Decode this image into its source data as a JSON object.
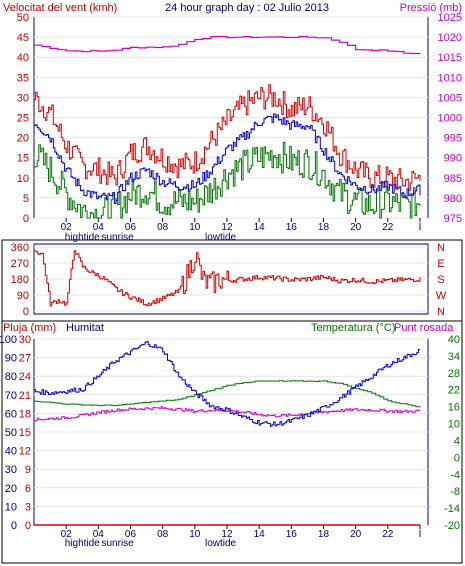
{
  "header": {
    "left_label": "Velocitat del vent (kmh)",
    "center_label": "24 hour graph day : 02 Julio 2013",
    "right_label": "Pressió (mb)"
  },
  "panel_labels": {
    "rain": "Pluja (mm)",
    "humidity": "Humitat",
    "temperature": "Temperatura (°C)",
    "dewpoint": "Punt rosada"
  },
  "x_axis": {
    "ticks": [
      "02",
      "04",
      "06",
      "08",
      "10",
      "12",
      "14",
      "16",
      "18",
      "20",
      "22",
      "I"
    ],
    "tick_hours": [
      2,
      4,
      6,
      8,
      10,
      12,
      14,
      16,
      18,
      20,
      22,
      24
    ],
    "events": [
      {
        "label": "hightide",
        "hour": 3.0
      },
      {
        "label": "sunrise",
        "hour": 5.2
      },
      {
        "label": "lowtide",
        "hour": 11.6
      }
    ],
    "range": [
      0,
      24.5
    ]
  },
  "colors": {
    "axis": "#000080",
    "wind_speed": "#dd0000",
    "wind_avg": "#0000cc",
    "wind_low": "#007700",
    "pressure": "#cc00cc",
    "direction": "#cc0000",
    "humidity": "#0000cc",
    "temperature": "#007700",
    "dewpoint": "#cc00cc",
    "rain": "#dd0000",
    "magenta_label": "#cc00cc",
    "green_label": "#007700",
    "red_label": "#cc0000"
  },
  "chart_data": [
    {
      "type": "line",
      "title": "24 hour graph day : 02 Julio 2013",
      "ylabel": "Velocitat del vent (kmh)",
      "y2label": "Pressió (mb)",
      "ylim": [
        0,
        50
      ],
      "y2lim": [
        975,
        1025
      ],
      "yticks": [
        "0",
        "5",
        "10",
        "15",
        "20",
        "25",
        "30",
        "35",
        "40",
        "45",
        "50"
      ],
      "y2ticks": [
        "975",
        "980",
        "985",
        "990",
        "995",
        "1000",
        "1005",
        "1010",
        "1015",
        "1020",
        "1025"
      ],
      "x_hours": [
        0,
        1,
        2,
        3,
        4,
        5,
        6,
        7,
        8,
        9,
        10,
        11,
        12,
        13,
        14,
        15,
        16,
        17,
        18,
        19,
        20,
        21,
        22,
        23,
        24
      ],
      "series": [
        {
          "name": "gust",
          "axis": "left",
          "values": [
            30,
            26,
            18,
            13,
            12,
            10,
            16,
            18,
            15,
            13,
            14,
            19,
            24,
            28,
            30,
            30,
            27,
            28,
            24,
            16,
            12,
            10,
            10,
            9,
            10
          ]
        },
        {
          "name": "average",
          "axis": "left",
          "values": [
            24,
            20,
            12,
            7,
            5,
            5,
            10,
            12,
            9,
            8,
            8,
            12,
            17,
            20,
            24,
            25,
            23,
            23,
            17,
            11,
            8,
            7,
            8,
            6,
            7
          ]
        },
        {
          "name": "low",
          "axis": "left",
          "values": [
            16,
            12,
            6,
            2,
            1,
            2,
            6,
            7,
            4,
            4,
            4,
            7,
            11,
            13,
            15,
            16,
            14,
            14,
            11,
            6,
            4,
            3,
            4,
            3,
            4
          ]
        },
        {
          "name": "pressure",
          "axis": "right",
          "values": [
            1018.0,
            1017.3,
            1016.6,
            1016.5,
            1016.5,
            1016.8,
            1017.4,
            1017.5,
            1017.5,
            1018.2,
            1019.5,
            1020.0,
            1020.0,
            1020.0,
            1020.0,
            1020.0,
            1020.0,
            1020.0,
            1019.8,
            1018.8,
            1016.9,
            1016.8,
            1016.6,
            1016.0,
            1016.0
          ]
        }
      ]
    },
    {
      "type": "line",
      "ylabel": "Direction",
      "ylim": [
        0,
        360
      ],
      "yticks": [
        "0",
        "90",
        "180",
        "270",
        "360"
      ],
      "y2ticks": [
        "N",
        "W",
        "S",
        "E",
        "N"
      ],
      "x_hours": [
        0,
        0.5,
        1,
        1.5,
        2,
        2.5,
        3,
        3.5,
        4,
        4.5,
        5,
        5.5,
        6,
        6.5,
        7,
        7.5,
        8,
        8.5,
        9,
        9.5,
        10,
        10.5,
        11,
        11.5,
        12,
        13,
        14,
        15,
        16,
        17,
        18,
        19,
        20,
        21,
        22,
        23,
        24
      ],
      "series": [
        {
          "name": "direction",
          "values": [
            340,
            320,
            40,
            60,
            40,
            350,
            250,
            220,
            200,
            170,
            130,
            100,
            80,
            60,
            40,
            55,
            70,
            90,
            110,
            200,
            320,
            170,
            150,
            180,
            170,
            180,
            190,
            185,
            175,
            180,
            190,
            170,
            175,
            165,
            170,
            175,
            180
          ]
        }
      ]
    },
    {
      "type": "line",
      "ylabel": "Humitat",
      "y2label": "Temperatura (°C)",
      "ylim": [
        0,
        100
      ],
      "y2lim": [
        -20,
        40
      ],
      "yticks": [
        "0",
        "10",
        "20",
        "30",
        "40",
        "50",
        "60",
        "70",
        "80",
        "90",
        "100"
      ],
      "y2ticks": [
        "-20",
        "-14",
        "-8",
        "-4",
        "0",
        "4",
        "10",
        "16",
        "22",
        "28",
        "34",
        "40"
      ],
      "rain_ticks": [
        "0",
        "3",
        "6",
        "9",
        "12",
        "15",
        "18",
        "21",
        "24",
        "27",
        "30"
      ],
      "x_hours": [
        0,
        1,
        2,
        3,
        4,
        5,
        6,
        7,
        8,
        9,
        10,
        11,
        12,
        13,
        14,
        15,
        16,
        17,
        18,
        19,
        20,
        21,
        22,
        23,
        24
      ],
      "series": [
        {
          "name": "Humitat",
          "axis": "left",
          "values": [
            72,
            71,
            72,
            73,
            80,
            88,
            93,
            98,
            94,
            80,
            71,
            64,
            62,
            58,
            55,
            54,
            56,
            59,
            63,
            68,
            74,
            80,
            86,
            90,
            94
          ]
        },
        {
          "name": "Temperatura (°C)",
          "axis": "right",
          "values": [
            20,
            19.5,
            19.0,
            18.8,
            18.6,
            18.6,
            19.0,
            19.6,
            20.0,
            20.5,
            22.0,
            23.5,
            25.0,
            26.0,
            26.4,
            26.4,
            26.4,
            26.4,
            26.4,
            25.7,
            24.0,
            22.6,
            20.0,
            19.0,
            18.0
          ]
        },
        {
          "name": "Punt rosada",
          "axis": "right",
          "values": [
            14.0,
            14.3,
            14.6,
            15.3,
            16.3,
            17.0,
            17.4,
            17.6,
            17.7,
            17.3,
            16.7,
            17.0,
            17.0,
            16.4,
            15.6,
            15.2,
            15.4,
            16.0,
            16.5,
            16.9,
            17.2,
            17.1,
            16.8,
            16.6,
            16.8
          ]
        },
        {
          "name": "Pluja (mm)",
          "axis": "rain",
          "values": [
            0,
            0,
            0,
            0,
            0,
            0,
            0,
            0,
            0,
            0,
            0,
            0,
            0,
            0,
            0,
            0,
            0,
            0,
            0,
            0,
            0,
            0,
            0,
            0,
            0
          ]
        }
      ]
    }
  ]
}
